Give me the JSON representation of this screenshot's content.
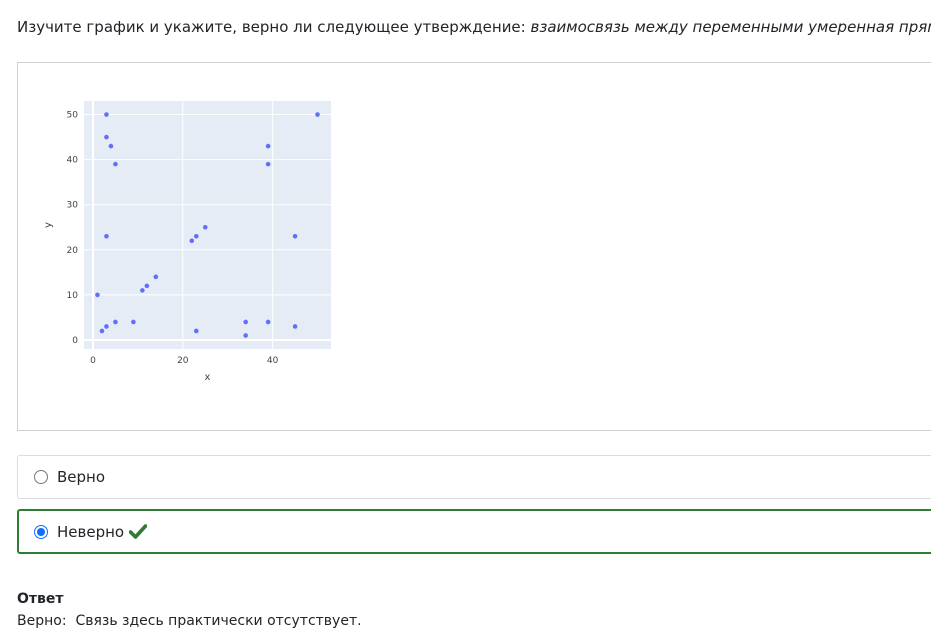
{
  "question": {
    "prefix": "Изучите график и укажите, верно ли следующее утверждение: ",
    "statement": "взаимосвязь между переменными умеренная прямая",
    "suffix": "."
  },
  "chart_data": {
    "type": "scatter",
    "title": "",
    "xlabel": "x",
    "ylabel": "y",
    "xlim": [
      -2,
      53
    ],
    "ylim": [
      -2,
      53
    ],
    "x_ticks": [
      0,
      20,
      40
    ],
    "y_ticks": [
      0,
      10,
      20,
      30,
      40,
      50
    ],
    "x_tick_labels": [
      "0",
      "20",
      "40"
    ],
    "y_tick_labels": [
      "0",
      "10",
      "20",
      "30",
      "40",
      "50"
    ],
    "grid": true,
    "background": "#e5ecf6",
    "marker_color": "#636efa",
    "points": [
      {
        "x": 1,
        "y": 10
      },
      {
        "x": 2,
        "y": 2
      },
      {
        "x": 3,
        "y": 3
      },
      {
        "x": 3,
        "y": 23
      },
      {
        "x": 3,
        "y": 45
      },
      {
        "x": 3,
        "y": 50
      },
      {
        "x": 4,
        "y": 43
      },
      {
        "x": 5,
        "y": 39
      },
      {
        "x": 5,
        "y": 4
      },
      {
        "x": 9,
        "y": 4
      },
      {
        "x": 11,
        "y": 11
      },
      {
        "x": 12,
        "y": 12
      },
      {
        "x": 14,
        "y": 14
      },
      {
        "x": 22,
        "y": 22
      },
      {
        "x": 23,
        "y": 23
      },
      {
        "x": 23,
        "y": 2
      },
      {
        "x": 25,
        "y": 25
      },
      {
        "x": 34,
        "y": 4
      },
      {
        "x": 34,
        "y": 1
      },
      {
        "x": 39,
        "y": 43
      },
      {
        "x": 39,
        "y": 39
      },
      {
        "x": 39,
        "y": 4
      },
      {
        "x": 45,
        "y": 23
      },
      {
        "x": 45,
        "y": 3
      },
      {
        "x": 50,
        "y": 50
      }
    ]
  },
  "options": [
    {
      "label": "Верно",
      "selected": false
    },
    {
      "label": "Неверно",
      "selected": true,
      "correct_icon": "checkmark-icon",
      "correct_color": "#2e7d32"
    }
  ],
  "colors": {
    "selected_border": "#2e7d32",
    "radio_accent": "#0d6efd"
  },
  "answer": {
    "heading": "Ответ",
    "text": "Верно:  Связь здесь практически отсутствует."
  }
}
